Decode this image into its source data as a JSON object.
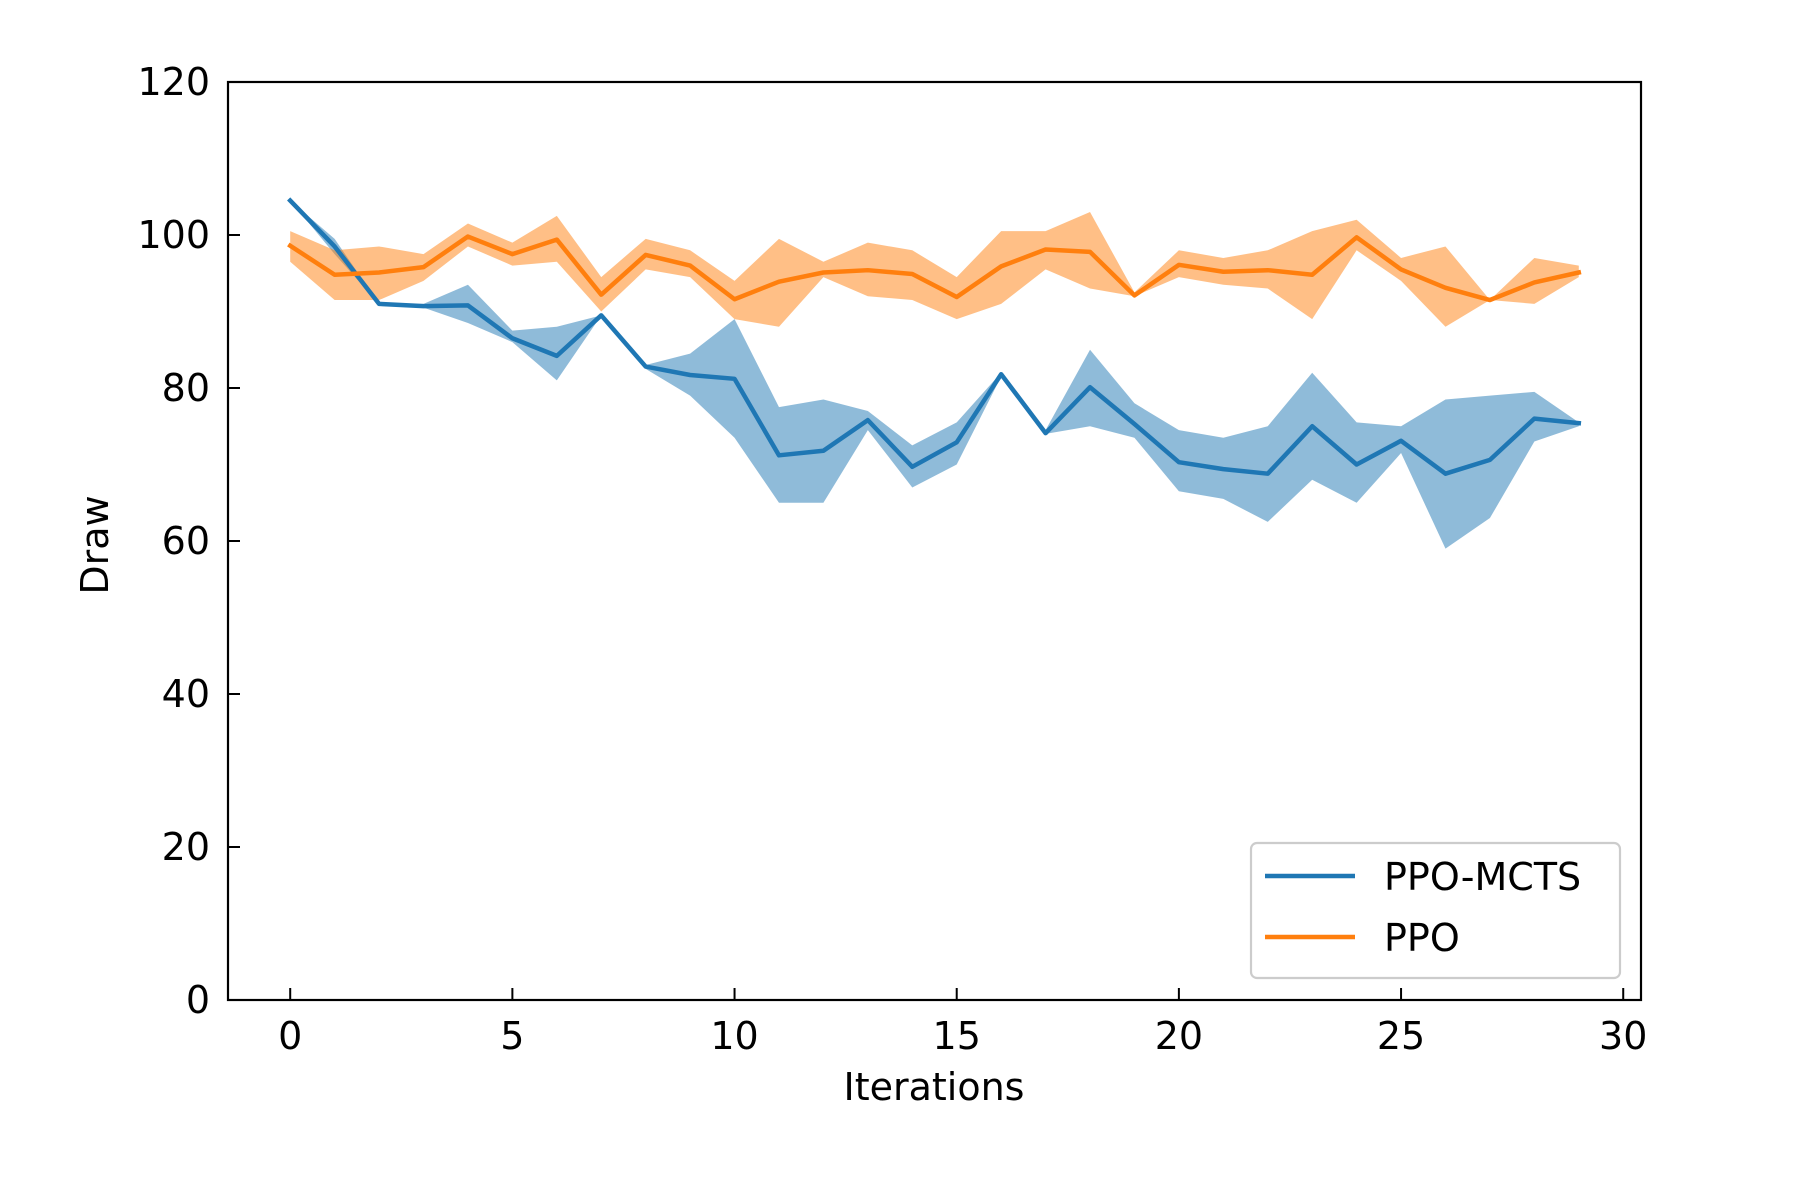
{
  "chart_data": {
    "type": "line",
    "title": "",
    "xlabel": "Iterations",
    "ylabel": "Draw",
    "xlim": [
      -1.4,
      30.4
    ],
    "ylim": [
      0,
      120
    ],
    "xticks": [
      0,
      5,
      10,
      15,
      20,
      25,
      30
    ],
    "yticks": [
      0,
      20,
      40,
      60,
      80,
      100,
      120
    ],
    "tick_direction": "in",
    "grid": false,
    "legend": {
      "placement": "lower-right",
      "entries": [
        "PPO-MCTS",
        "PPO"
      ]
    },
    "x": [
      0,
      1,
      2,
      3,
      4,
      5,
      6,
      7,
      8,
      9,
      10,
      11,
      12,
      13,
      14,
      15,
      16,
      17,
      18,
      19,
      20,
      21,
      22,
      23,
      24,
      25,
      26,
      27,
      28,
      29
    ],
    "series": [
      {
        "name": "PPO-MCTS",
        "color": "#1f77b4",
        "fill_opacity": 0.5,
        "values": [
          104.5,
          98.5,
          91.0,
          90.7,
          90.8,
          86.5,
          84.2,
          89.5,
          82.8,
          81.7,
          81.2,
          71.2,
          71.8,
          75.8,
          69.7,
          72.9,
          81.8,
          74.1,
          80.1,
          75.3,
          70.3,
          69.4,
          68.8,
          75.0,
          70.0,
          73.1,
          68.8,
          70.6,
          76.0,
          75.4
        ],
        "upper": [
          104.5,
          99.5,
          91.0,
          91.0,
          93.5,
          87.5,
          88.0,
          89.5,
          83.0,
          84.5,
          89.0,
          77.5,
          78.5,
          77.0,
          72.5,
          75.5,
          82.0,
          74.5,
          85.0,
          78.0,
          74.5,
          73.5,
          75.0,
          82.0,
          75.5,
          75.0,
          78.5,
          79.0,
          79.5,
          75.5
        ],
        "lower": [
          104.5,
          97.5,
          91.0,
          90.5,
          88.5,
          86.0,
          81.0,
          89.5,
          82.5,
          79.0,
          73.5,
          65.0,
          65.0,
          74.5,
          67.0,
          70.0,
          81.5,
          74.0,
          75.0,
          73.5,
          66.5,
          65.5,
          62.5,
          68.0,
          65.0,
          71.5,
          59.0,
          63.0,
          73.0,
          75.0
        ]
      },
      {
        "name": "PPO",
        "color": "#ff7f0e",
        "fill_opacity": 0.5,
        "values": [
          98.6,
          94.8,
          95.1,
          95.8,
          99.8,
          97.5,
          99.4,
          92.2,
          97.4,
          96.0,
          91.6,
          93.9,
          95.1,
          95.4,
          94.9,
          91.9,
          95.9,
          98.1,
          97.8,
          92.1,
          96.1,
          95.2,
          95.4,
          94.8,
          99.7,
          95.5,
          93.1,
          91.5,
          93.8,
          95.1
        ],
        "upper": [
          100.5,
          98.0,
          98.5,
          97.5,
          101.5,
          99.0,
          102.5,
          94.5,
          99.5,
          98.0,
          94.0,
          99.5,
          96.5,
          99.0,
          98.0,
          94.5,
          100.5,
          100.5,
          103.0,
          92.5,
          98.0,
          97.0,
          98.0,
          100.5,
          102.0,
          97.0,
          98.5,
          91.5,
          97.0,
          96.0
        ],
        "lower": [
          96.5,
          91.5,
          91.5,
          94.0,
          98.5,
          96.0,
          96.5,
          90.0,
          95.5,
          94.5,
          89.0,
          88.0,
          94.5,
          92.0,
          91.5,
          89.0,
          91.0,
          95.5,
          93.0,
          92.0,
          94.5,
          93.5,
          93.0,
          89.0,
          98.0,
          94.0,
          88.0,
          91.5,
          91.0,
          94.5
        ]
      }
    ]
  }
}
